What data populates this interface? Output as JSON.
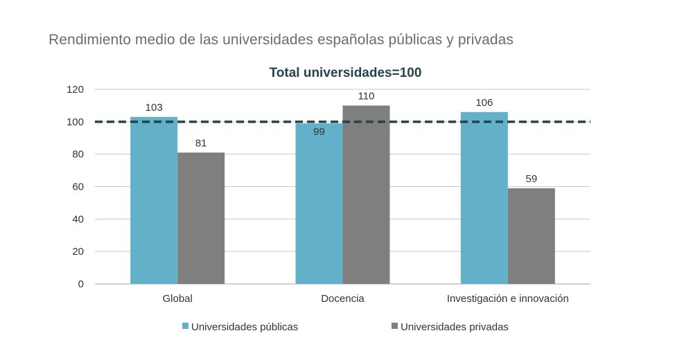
{
  "title": "Rendimiento medio de las universidades españolas públicas y privadas",
  "colors": {
    "public": "#62b1c8",
    "private": "#7f7f7f",
    "reference": "#24434f",
    "grid": "#c8c8c8"
  },
  "chart_data": {
    "type": "bar",
    "categories": [
      "Global",
      "Docencia",
      "Investigación e innovación"
    ],
    "series": [
      {
        "name": "Universidades públicas",
        "values": [
          103,
          99,
          106
        ]
      },
      {
        "name": "Universidades privadas",
        "values": [
          81,
          110,
          59
        ]
      }
    ],
    "yticks": [
      0,
      20,
      40,
      60,
      80,
      100,
      120
    ],
    "ylim": [
      0,
      120
    ],
    "grid": true,
    "reference_line": {
      "value": 100,
      "label": "Total universidades=100"
    },
    "legend_position": "bottom"
  }
}
